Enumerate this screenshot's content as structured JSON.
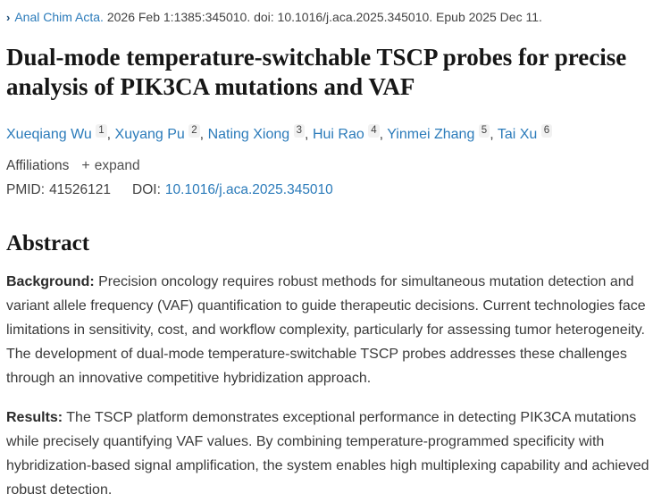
{
  "citation": {
    "chevron": "›",
    "journal": "Anal Chim Acta.",
    "rest": "2026 Feb 1:1385:345010. doi: 10.1016/j.aca.2025.345010. Epub 2025 Dec 11."
  },
  "title": "Dual-mode temperature-switchable TSCP probes for precise analysis of PIK3CA mutations and VAF",
  "authors": [
    {
      "name": "Xueqiang Wu",
      "sup": "1"
    },
    {
      "name": "Xuyang Pu",
      "sup": "2"
    },
    {
      "name": "Nating Xiong",
      "sup": "3"
    },
    {
      "name": "Hui Rao",
      "sup": "4"
    },
    {
      "name": "Yinmei Zhang",
      "sup": "5"
    },
    {
      "name": "Tai Xu",
      "sup": "6"
    }
  ],
  "affiliations": {
    "label": "Affiliations",
    "expand_icon": "+",
    "expand_label": "expand"
  },
  "ids": {
    "pmid_label": "PMID:",
    "pmid_value": "41526121",
    "doi_label": "DOI:",
    "doi_value": "10.1016/j.aca.2025.345010"
  },
  "abstract": {
    "heading": "Abstract",
    "paragraphs": [
      {
        "label": "Background:",
        "text": " Precision oncology requires robust methods for simultaneous mutation detection and variant allele frequency (VAF) quantification to guide therapeutic decisions. Current technologies face limitations in sensitivity, cost, and workflow complexity, particularly for assessing tumor heterogeneity. The development of dual-mode temperature-switchable TSCP probes addresses these challenges through an innovative competitive hybridization approach."
      },
      {
        "label": "Results:",
        "text": " The TSCP platform demonstrates exceptional performance in detecting PIK3CA mutations while precisely quantifying VAF values. By combining temperature-programmed specificity with hybridization-based signal amplification, the system enables high multiplexing capability and achieved robust detection."
      }
    ]
  },
  "colors": {
    "link_blue": "#2b7bba",
    "chevron_navy": "#1e4e79",
    "superscript_bg": "#f1f1f1",
    "body_text": "#3a3a3a",
    "heading_text": "#161616"
  }
}
